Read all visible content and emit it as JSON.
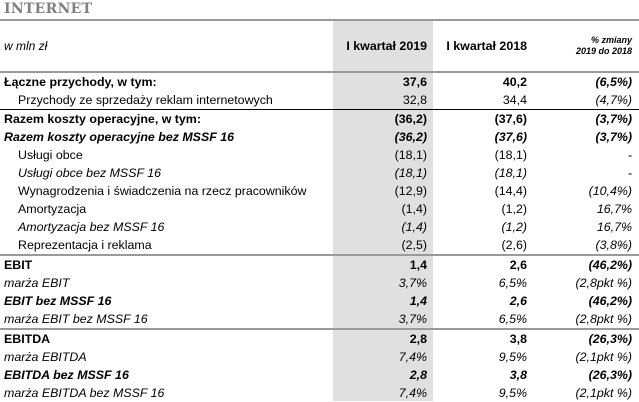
{
  "title": "INTERNET",
  "header": {
    "unit": "w mln zł",
    "col1": "I kwartał 2019",
    "col2": "I kwartał 2018",
    "col3_line1": "% zmiany",
    "col3_line2": "2019 do 2018"
  },
  "rows": [
    {
      "label": "Łączne przychody, w tym:",
      "v1": "37,6",
      "v2": "40,2",
      "v3": "(6,5%)"
    },
    {
      "label": "Przychody ze sprzedaży reklam internetowych",
      "v1": "32,8",
      "v2": "34,4",
      "v3": "(4,7%)"
    },
    {
      "label": "Razem koszty operacyjne, w tym:",
      "v1": "(36,2)",
      "v2": "(37,6)",
      "v3": "(3,7%)"
    },
    {
      "label": "Razem koszty operacyjne bez MSSF 16",
      "v1": "(36,2)",
      "v2": "(37,6)",
      "v3": "(3,7%)"
    },
    {
      "label": "Usługi obce",
      "v1": "(18,1)",
      "v2": "(18,1)",
      "v3": "-"
    },
    {
      "label": "Usługi obce bez MSSF 16",
      "v1": "(18,1)",
      "v2": "(18,1)",
      "v3": "-"
    },
    {
      "label": "Wynagrodzenia i świadczenia na rzecz pracowników",
      "v1": "(12,9)",
      "v2": "(14,4)",
      "v3": "(10,4%)"
    },
    {
      "label": "Amortyzacja",
      "v1": "(1,4)",
      "v2": "(1,2)",
      "v3": "16,7%"
    },
    {
      "label": "Amortyzacja bez MSSF 16",
      "v1": "(1,4)",
      "v2": "(1,2)",
      "v3": "16,7%"
    },
    {
      "label": "Reprezentacja i reklama",
      "v1": "(2,5)",
      "v2": "(2,6)",
      "v3": "(3,8%)"
    },
    {
      "label": "EBIT",
      "v1": "1,4",
      "v2": "2,6",
      "v3": "(46,2%)"
    },
    {
      "label": "marża EBIT",
      "v1": "3,7%",
      "v2": "6,5%",
      "v3": "(2,8pkt %)"
    },
    {
      "label": "EBIT bez MSSF 16",
      "v1": "1,4",
      "v2": "2,6",
      "v3": "(46,2%)"
    },
    {
      "label": "marża EBIT bez MSSF 16",
      "v1": "3,7%",
      "v2": "6,5%",
      "v3": "(2,8pkt %)"
    },
    {
      "label": "EBITDA",
      "v1": "2,8",
      "v2": "3,8",
      "v3": "(26,3%)"
    },
    {
      "label": "marża EBITDA",
      "v1": "7,4%",
      "v2": "9,5%",
      "v3": "(2,1pkt %)"
    },
    {
      "label": "EBITDA bez MSSF 16",
      "v1": "2,8",
      "v2": "3,8",
      "v3": "(26,3%)"
    },
    {
      "label": "marża EBITDA bez MSSF 16",
      "v1": "7,4%",
      "v2": "9,5%",
      "v3": "(2,1pkt %)"
    }
  ]
}
